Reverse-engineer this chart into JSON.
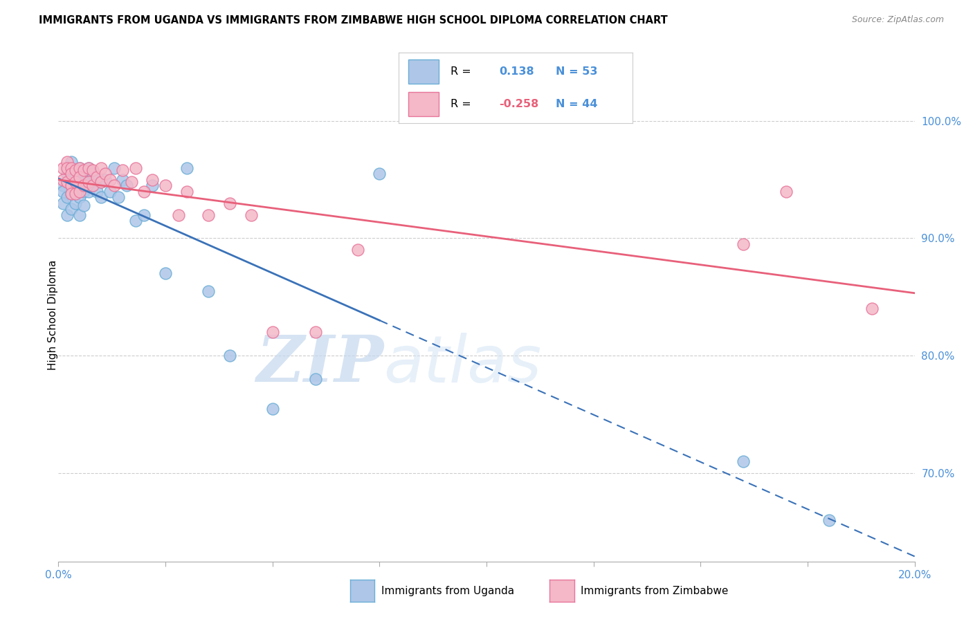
{
  "title": "IMMIGRANTS FROM UGANDA VS IMMIGRANTS FROM ZIMBABWE HIGH SCHOOL DIPLOMA CORRELATION CHART",
  "source": "Source: ZipAtlas.com",
  "ylabel": "High School Diploma",
  "y_tick_labels": [
    "70.0%",
    "80.0%",
    "90.0%",
    "100.0%"
  ],
  "y_tick_values": [
    0.7,
    0.8,
    0.9,
    1.0
  ],
  "x_tick_values": [
    0.0,
    0.025,
    0.05,
    0.075,
    0.1,
    0.125,
    0.15,
    0.175,
    0.2
  ],
  "legend_r1": "R =",
  "legend_v1": "0.138",
  "legend_n1": "N = 53",
  "legend_r2": "R =",
  "legend_v2": "-0.258",
  "legend_n2": "N = 44",
  "uganda_color": "#aec6e8",
  "uganda_edge_color": "#6aaed6",
  "zimbabwe_color": "#f4b8c8",
  "zimbabwe_edge_color": "#e8759a",
  "trend_uganda_color": "#3a72b8",
  "trend_zimbabwe_color": "#e8607a",
  "background_color": "#ffffff",
  "grid_color": "#cccccc",
  "right_label_color": "#4a90d9",
  "watermark_color_zip": "#c8ddf0",
  "watermark_color_atlas": "#d8e8f5",
  "uganda_x": [
    0.001,
    0.001,
    0.001,
    0.002,
    0.002,
    0.002,
    0.002,
    0.002,
    0.003,
    0.003,
    0.003,
    0.003,
    0.003,
    0.004,
    0.004,
    0.004,
    0.004,
    0.005,
    0.005,
    0.005,
    0.005,
    0.005,
    0.006,
    0.006,
    0.006,
    0.006,
    0.007,
    0.007,
    0.007,
    0.008,
    0.008,
    0.009,
    0.009,
    0.01,
    0.01,
    0.011,
    0.012,
    0.013,
    0.014,
    0.015,
    0.016,
    0.018,
    0.02,
    0.022,
    0.025,
    0.03,
    0.035,
    0.04,
    0.05,
    0.06,
    0.075,
    0.16,
    0.18
  ],
  "uganda_y": [
    0.945,
    0.94,
    0.93,
    0.96,
    0.955,
    0.948,
    0.935,
    0.92,
    0.965,
    0.95,
    0.945,
    0.938,
    0.925,
    0.955,
    0.948,
    0.94,
    0.93,
    0.96,
    0.95,
    0.945,
    0.935,
    0.92,
    0.955,
    0.948,
    0.94,
    0.928,
    0.96,
    0.952,
    0.94,
    0.955,
    0.945,
    0.95,
    0.94,
    0.948,
    0.935,
    0.95,
    0.94,
    0.96,
    0.935,
    0.95,
    0.945,
    0.915,
    0.92,
    0.945,
    0.87,
    0.96,
    0.855,
    0.8,
    0.755,
    0.78,
    0.955,
    0.71,
    0.66
  ],
  "zimbabwe_x": [
    0.001,
    0.001,
    0.002,
    0.002,
    0.002,
    0.003,
    0.003,
    0.003,
    0.003,
    0.004,
    0.004,
    0.004,
    0.005,
    0.005,
    0.005,
    0.006,
    0.006,
    0.007,
    0.007,
    0.008,
    0.008,
    0.009,
    0.01,
    0.01,
    0.011,
    0.012,
    0.013,
    0.015,
    0.017,
    0.018,
    0.02,
    0.022,
    0.025,
    0.028,
    0.03,
    0.035,
    0.04,
    0.045,
    0.05,
    0.06,
    0.07,
    0.16,
    0.17,
    0.19
  ],
  "zimbabwe_y": [
    0.96,
    0.95,
    0.965,
    0.96,
    0.948,
    0.96,
    0.955,
    0.945,
    0.938,
    0.958,
    0.948,
    0.938,
    0.96,
    0.952,
    0.94,
    0.958,
    0.945,
    0.96,
    0.948,
    0.958,
    0.945,
    0.952,
    0.96,
    0.948,
    0.955,
    0.95,
    0.945,
    0.958,
    0.948,
    0.96,
    0.94,
    0.95,
    0.945,
    0.92,
    0.94,
    0.92,
    0.93,
    0.92,
    0.82,
    0.82,
    0.89,
    0.895,
    0.94,
    0.84
  ]
}
